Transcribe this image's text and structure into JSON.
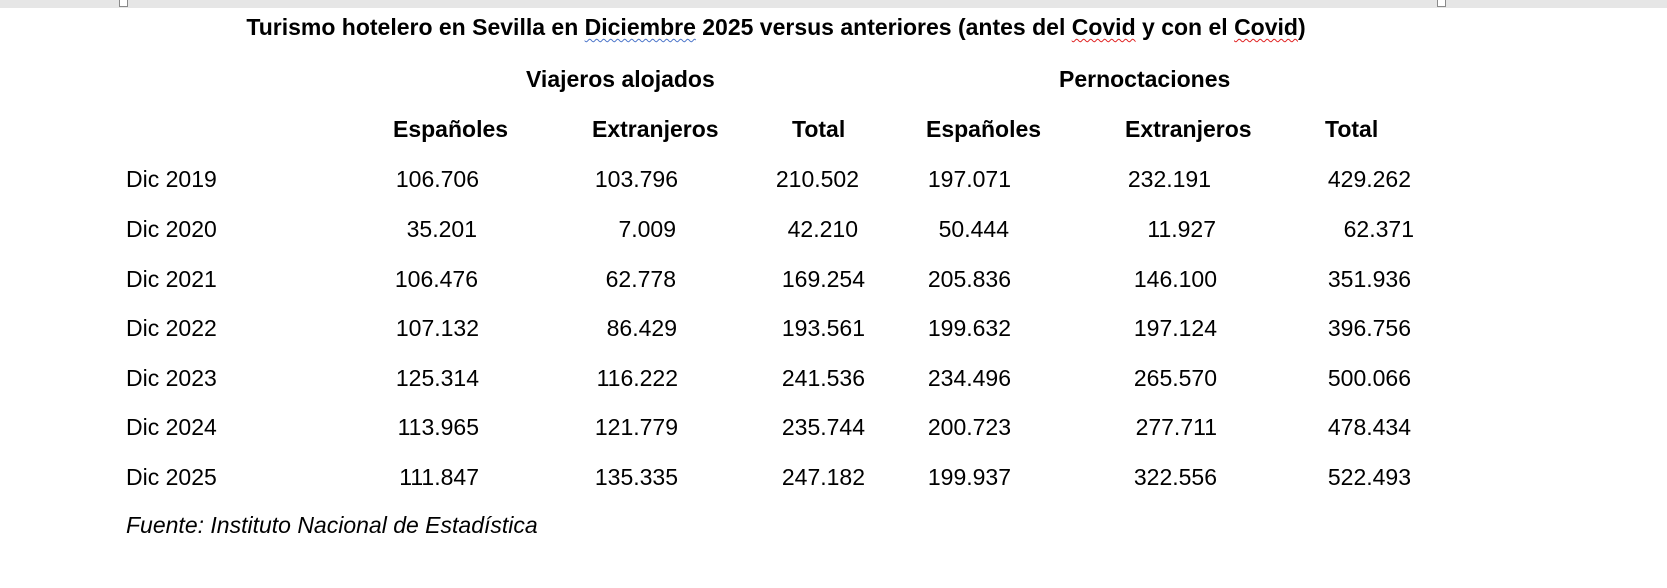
{
  "title": {
    "part1": "Turismo hotelero en Sevilla en ",
    "w_diciembre": "Diciembre",
    "part2": " 2025 versus anteriores (antes del ",
    "w_covid1": "Covid",
    "part3": " y con el ",
    "w_covid2": "Covid",
    "part4": ")"
  },
  "groups": {
    "viajeros": "Viajeros alojados",
    "pernoctaciones": "Pernoctaciones"
  },
  "columns": [
    "Españoles",
    "Extranjeros",
    "Total",
    "Españoles",
    "Extranjeros",
    "Total"
  ],
  "rows": [
    {
      "period": "Dic 2019",
      "values": [
        "106.706",
        "103.796",
        "210.502",
        "197.071",
        "232.191",
        "429.262"
      ]
    },
    {
      "period": "Dic 2020",
      "values": [
        "35.201",
        "7.009",
        "42.210",
        "50.444",
        "11.927",
        "62.371"
      ]
    },
    {
      "period": "Dic 2021",
      "values": [
        "106.476",
        "62.778",
        "169.254",
        "205.836",
        "146.100",
        "351.936"
      ]
    },
    {
      "period": "Dic 2022",
      "values": [
        "107.132",
        "86.429",
        "193.561",
        "199.632",
        "197.124",
        "396.756"
      ]
    },
    {
      "period": "Dic 2023",
      "values": [
        "125.314",
        "116.222",
        "241.536",
        "234.496",
        "265.570",
        "500.066"
      ]
    },
    {
      "period": "Dic 2024",
      "values": [
        "113.965",
        "121.779",
        "235.744",
        "200.723",
        "277.711",
        "478.434"
      ]
    },
    {
      "period": "Dic 2025",
      "values": [
        "111.847",
        "135.335",
        "247.182",
        "199.937",
        "322.556",
        "522.493"
      ]
    }
  ],
  "source": "Fuente: Instituto Nacional de Estadística"
}
